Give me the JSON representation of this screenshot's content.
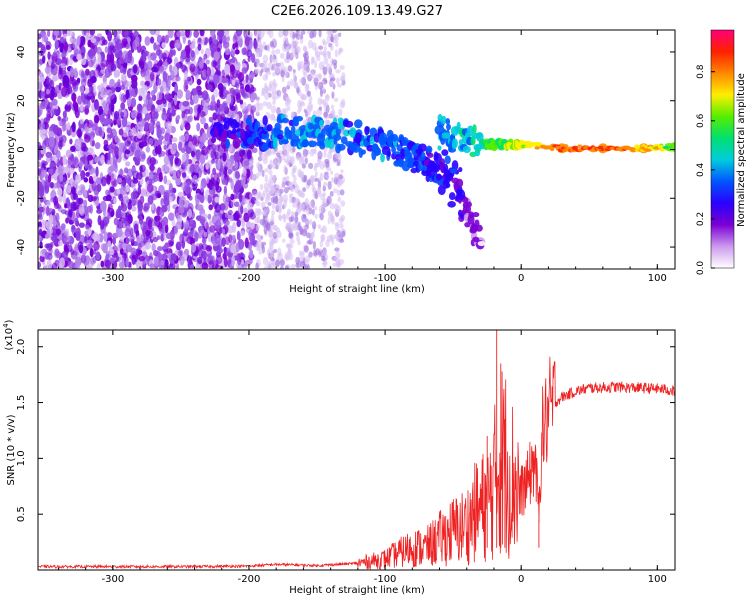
{
  "figure_title": "C2E6.2026.109.13.49.G27",
  "chart_data": [
    {
      "type": "heatmap",
      "name": "spectrogram",
      "xlabel": "Height of straight line (km)",
      "ylabel": "Frequency (Hz)",
      "xlim": [
        -355,
        113
      ],
      "ylim": [
        -49,
        49
      ],
      "xticks": [
        -300,
        -200,
        -100,
        0,
        100
      ],
      "yticks": [
        -40,
        -20,
        0,
        20,
        40
      ],
      "xtick_labels": [
        "-300",
        "-200",
        "-100",
        "0",
        "100"
      ],
      "ytick_labels": [
        "-40",
        "-20",
        "0",
        "20",
        "40"
      ],
      "colorbar": {
        "label": "Normalized spectral amplitude",
        "range": [
          0,
          0.97
        ],
        "ticks": [
          0.0,
          0.2,
          0.4,
          0.6,
          0.8
        ],
        "tick_labels": [
          "0.0",
          "0.2",
          "0.4",
          "0.6",
          "0.8"
        ],
        "colors": [
          "#ffffff",
          "#cc99ee",
          "#7b00d4",
          "#2a00ff",
          "#0055ff",
          "#00ccdd",
          "#00e070",
          "#55ee00",
          "#ffee00",
          "#ff8800",
          "#ff2000",
          "#ff0077"
        ]
      },
      "signal_band": [
        {
          "x": -225,
          "f": 7,
          "amp": 0.25
        },
        {
          "x": -200,
          "f": 6,
          "amp": 0.3
        },
        {
          "x": -180,
          "f": 7,
          "amp": 0.35
        },
        {
          "x": -160,
          "f": 8,
          "amp": 0.4
        },
        {
          "x": -140,
          "f": 7,
          "amp": 0.4
        },
        {
          "x": -120,
          "f": 5,
          "amp": 0.35
        },
        {
          "x": -100,
          "f": 2,
          "amp": 0.35
        },
        {
          "x": -85,
          "f": -1,
          "amp": 0.35
        },
        {
          "x": -70,
          "f": -5,
          "amp": 0.3
        },
        {
          "x": -55,
          "f": -12,
          "amp": 0.25
        },
        {
          "x": -30,
          "f": -38,
          "amp": 0.1
        },
        {
          "x": -60,
          "f": 8,
          "amp": 0.4
        },
        {
          "x": -40,
          "f": 4,
          "amp": 0.45
        },
        {
          "x": -20,
          "f": 2,
          "amp": 0.6
        },
        {
          "x": 0,
          "f": 2,
          "amp": 0.7
        },
        {
          "x": 30,
          "f": 0.5,
          "amp": 0.85
        },
        {
          "x": 60,
          "f": 0.5,
          "amp": 0.85
        },
        {
          "x": 90,
          "f": 0.5,
          "amp": 0.8
        },
        {
          "x": 113,
          "f": 1,
          "amp": 0.6
        }
      ]
    },
    {
      "type": "line",
      "name": "snr",
      "xlabel": "Height of straight line (km)",
      "ylabel": "SNR (10 * v/v)",
      "scale_label": "(x10",
      "scale_exponent": "4",
      "xlim": [
        -355,
        113
      ],
      "ylim": [
        0,
        2.15
      ],
      "xticks": [
        -300,
        -200,
        -100,
        0,
        100
      ],
      "yticks": [
        0.5,
        1.0,
        1.5,
        2.0
      ],
      "xtick_labels": [
        "-300",
        "-200",
        "-100",
        "0",
        "100"
      ],
      "ytick_labels": [
        "0.5",
        "1.0",
        "1.5",
        "2.0"
      ],
      "color": "#ee2222",
      "series": [
        {
          "name": "SNR",
          "x": [
            -355,
            -300,
            -250,
            -200,
            -180,
            -150,
            -120,
            -100,
            -90,
            -80,
            -70,
            -60,
            -50,
            -40,
            -35,
            -30,
            -25,
            -20,
            -18,
            -15,
            -12,
            -10,
            -5,
            0,
            5,
            10,
            13,
            15,
            20,
            25,
            30,
            40,
            50,
            70,
            90,
            105,
            113
          ],
          "y": [
            0.03,
            0.03,
            0.03,
            0.035,
            0.05,
            0.04,
            0.06,
            0.1,
            0.15,
            0.2,
            0.2,
            0.28,
            0.35,
            0.4,
            0.5,
            0.55,
            0.6,
            0.75,
            0.9,
            1.0,
            1.0,
            0.9,
            0.8,
            0.7,
            0.8,
            1.0,
            0.5,
            1.2,
            1.4,
            1.5,
            1.55,
            1.6,
            1.63,
            1.64,
            1.63,
            1.62,
            1.6
          ]
        }
      ],
      "spikes": [
        {
          "x": -18,
          "y": 2.15
        },
        {
          "x": -15,
          "y": 1.85
        },
        {
          "x": -12,
          "y": 1.35
        },
        {
          "x": -25,
          "y": 1.2
        },
        {
          "x": 13,
          "y": 0.46
        }
      ]
    }
  ]
}
